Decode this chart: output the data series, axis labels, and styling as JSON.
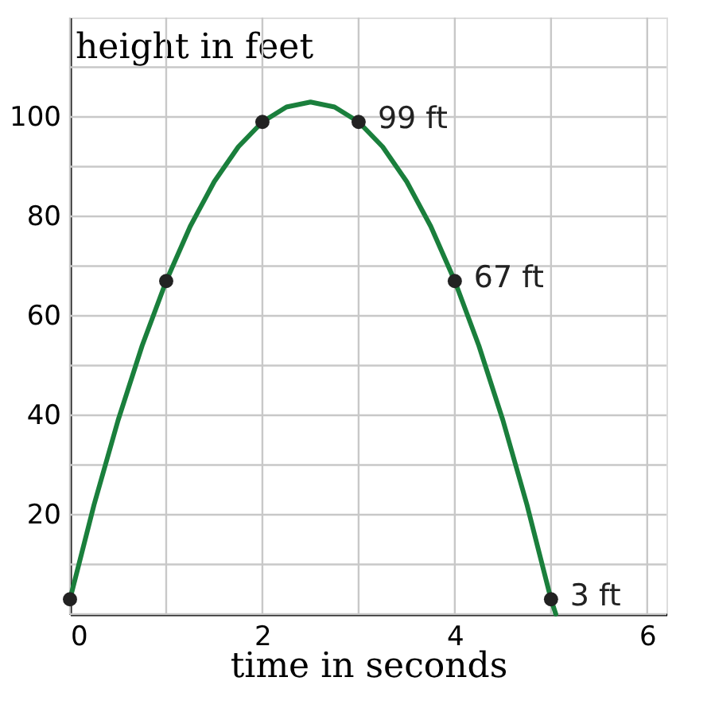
{
  "chart_data": {
    "type": "line",
    "xlabel": "time in seconds",
    "ylabel": "height in feet",
    "xlim": [
      0,
      6.2
    ],
    "ylim": [
      0,
      120
    ],
    "xticks": [
      0,
      {
        "value": 1,
        "label": null
      },
      2,
      {
        "value": 3,
        "label": null
      },
      4,
      {
        "value": 5,
        "label": null
      },
      6
    ],
    "yticks": [
      {
        "value": 0,
        "label": null
      },
      {
        "value": 10,
        "label": null
      },
      20,
      {
        "value": 30,
        "label": null
      },
      40,
      {
        "value": 50,
        "label": null
      },
      60,
      {
        "value": 70,
        "label": null
      },
      80,
      {
        "value": 90,
        "label": null
      },
      100,
      {
        "value": 110,
        "label": null
      }
    ],
    "grid": true,
    "series": [
      {
        "color": "#1a7f3c",
        "marker": "none",
        "x": [
          0,
          0.25,
          0.5,
          0.75,
          1,
          1.25,
          1.5,
          1.75,
          2,
          2.25,
          2.5,
          2.75,
          3,
          3.25,
          3.5,
          3.75,
          4,
          4.25,
          4.5,
          4.75,
          5,
          5.05
        ],
        "values": [
          3,
          22,
          39,
          54,
          67,
          78,
          87,
          94,
          99,
          102,
          103,
          102,
          99,
          94,
          87,
          78,
          67,
          54,
          39,
          22,
          3,
          0
        ]
      },
      {
        "type": "scatter",
        "color": "#222222",
        "marker": "circle",
        "x": [
          0,
          1,
          2,
          3,
          4,
          5
        ],
        "values": [
          3,
          67,
          99,
          99,
          67,
          3
        ],
        "value_labels": [
          null,
          null,
          null,
          "99 ft",
          "67 ft",
          "3 ft"
        ]
      }
    ]
  }
}
